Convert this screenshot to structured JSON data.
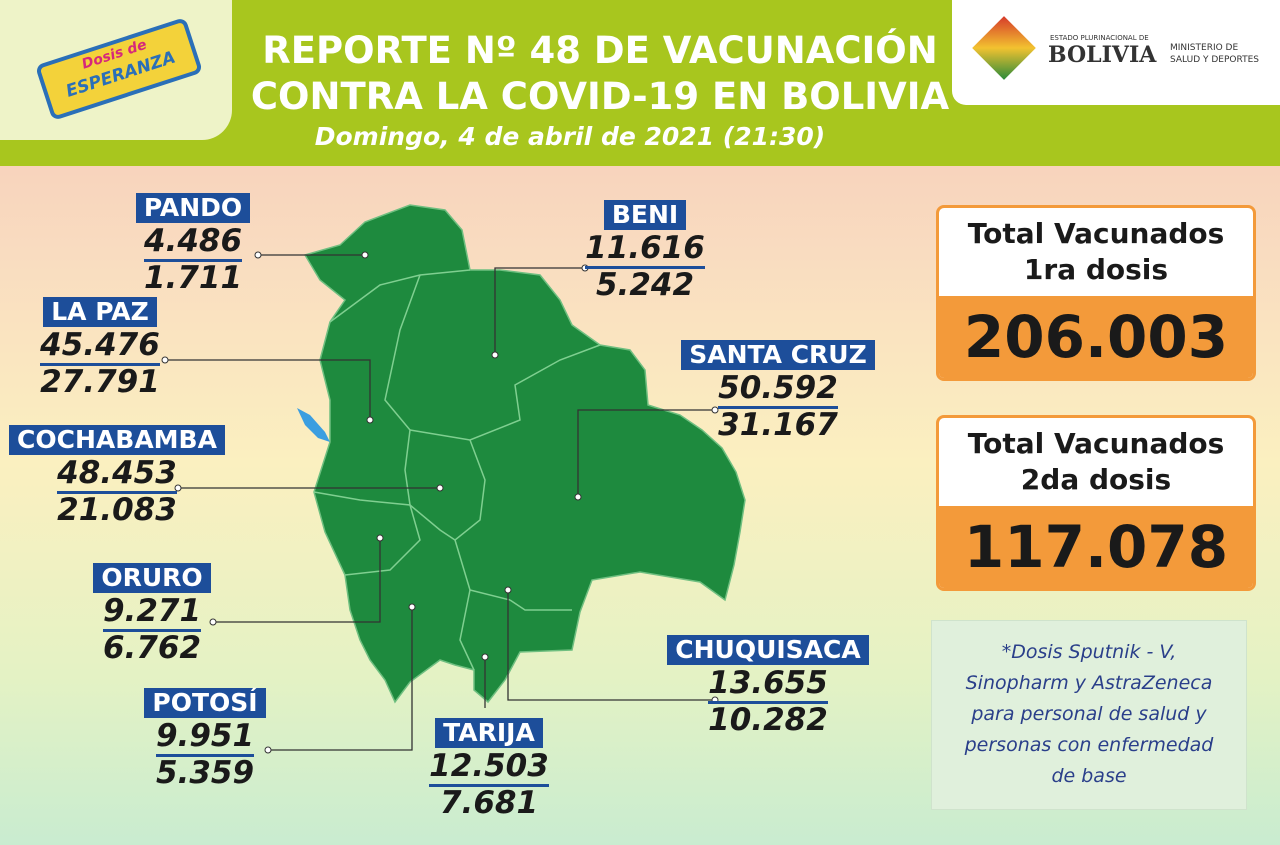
{
  "header": {
    "logo_top": "Dosis de",
    "logo_bottom": "ESPERANZA",
    "title_lines": [
      "REPORTE Nº 48 DE VACUNACIÓN",
      "CONTRA LA COVID-19 EN BOLIVIA"
    ],
    "date": "Domingo, 4 de abril de 2021 (21:30)",
    "ministry": {
      "state": "ESTADO PLURINACIONAL DE",
      "country": "BOLIVIA",
      "ministry_lines": [
        "MINISTERIO DE",
        "SALUD Y DEPORTES"
      ]
    }
  },
  "departments": [
    {
      "name": "PANDO",
      "first": "4.486",
      "second": "1.711"
    },
    {
      "name": "BENI",
      "first": "11.616",
      "second": "5.242"
    },
    {
      "name": "LA PAZ",
      "first": "45.476",
      "second": "27.791"
    },
    {
      "name": "SANTA CRUZ",
      "first": "50.592",
      "second": "31.167"
    },
    {
      "name": "COCHABAMBA",
      "first": "48.453",
      "second": "21.083"
    },
    {
      "name": "ORURO",
      "first": "9.271",
      "second": "6.762"
    },
    {
      "name": "CHUQUISACA",
      "first": "13.655",
      "second": "10.282"
    },
    {
      "name": "POTOSÍ",
      "first": "9.951",
      "second": "5.359"
    },
    {
      "name": "TARIJA",
      "first": "12.503",
      "second": "7.681"
    }
  ],
  "totals": [
    {
      "label_lines": [
        "Total Vacunados",
        "1ra dosis"
      ],
      "value": "206.003"
    },
    {
      "label_lines": [
        "Total Vacunados",
        "2da dosis"
      ],
      "value": "117.078"
    }
  ],
  "note_lines": [
    "*Dosis Sputnik - V,",
    "Sinopharm y AstraZeneca",
    "para personal de salud y",
    "personas con enfermedad",
    "de base"
  ]
}
